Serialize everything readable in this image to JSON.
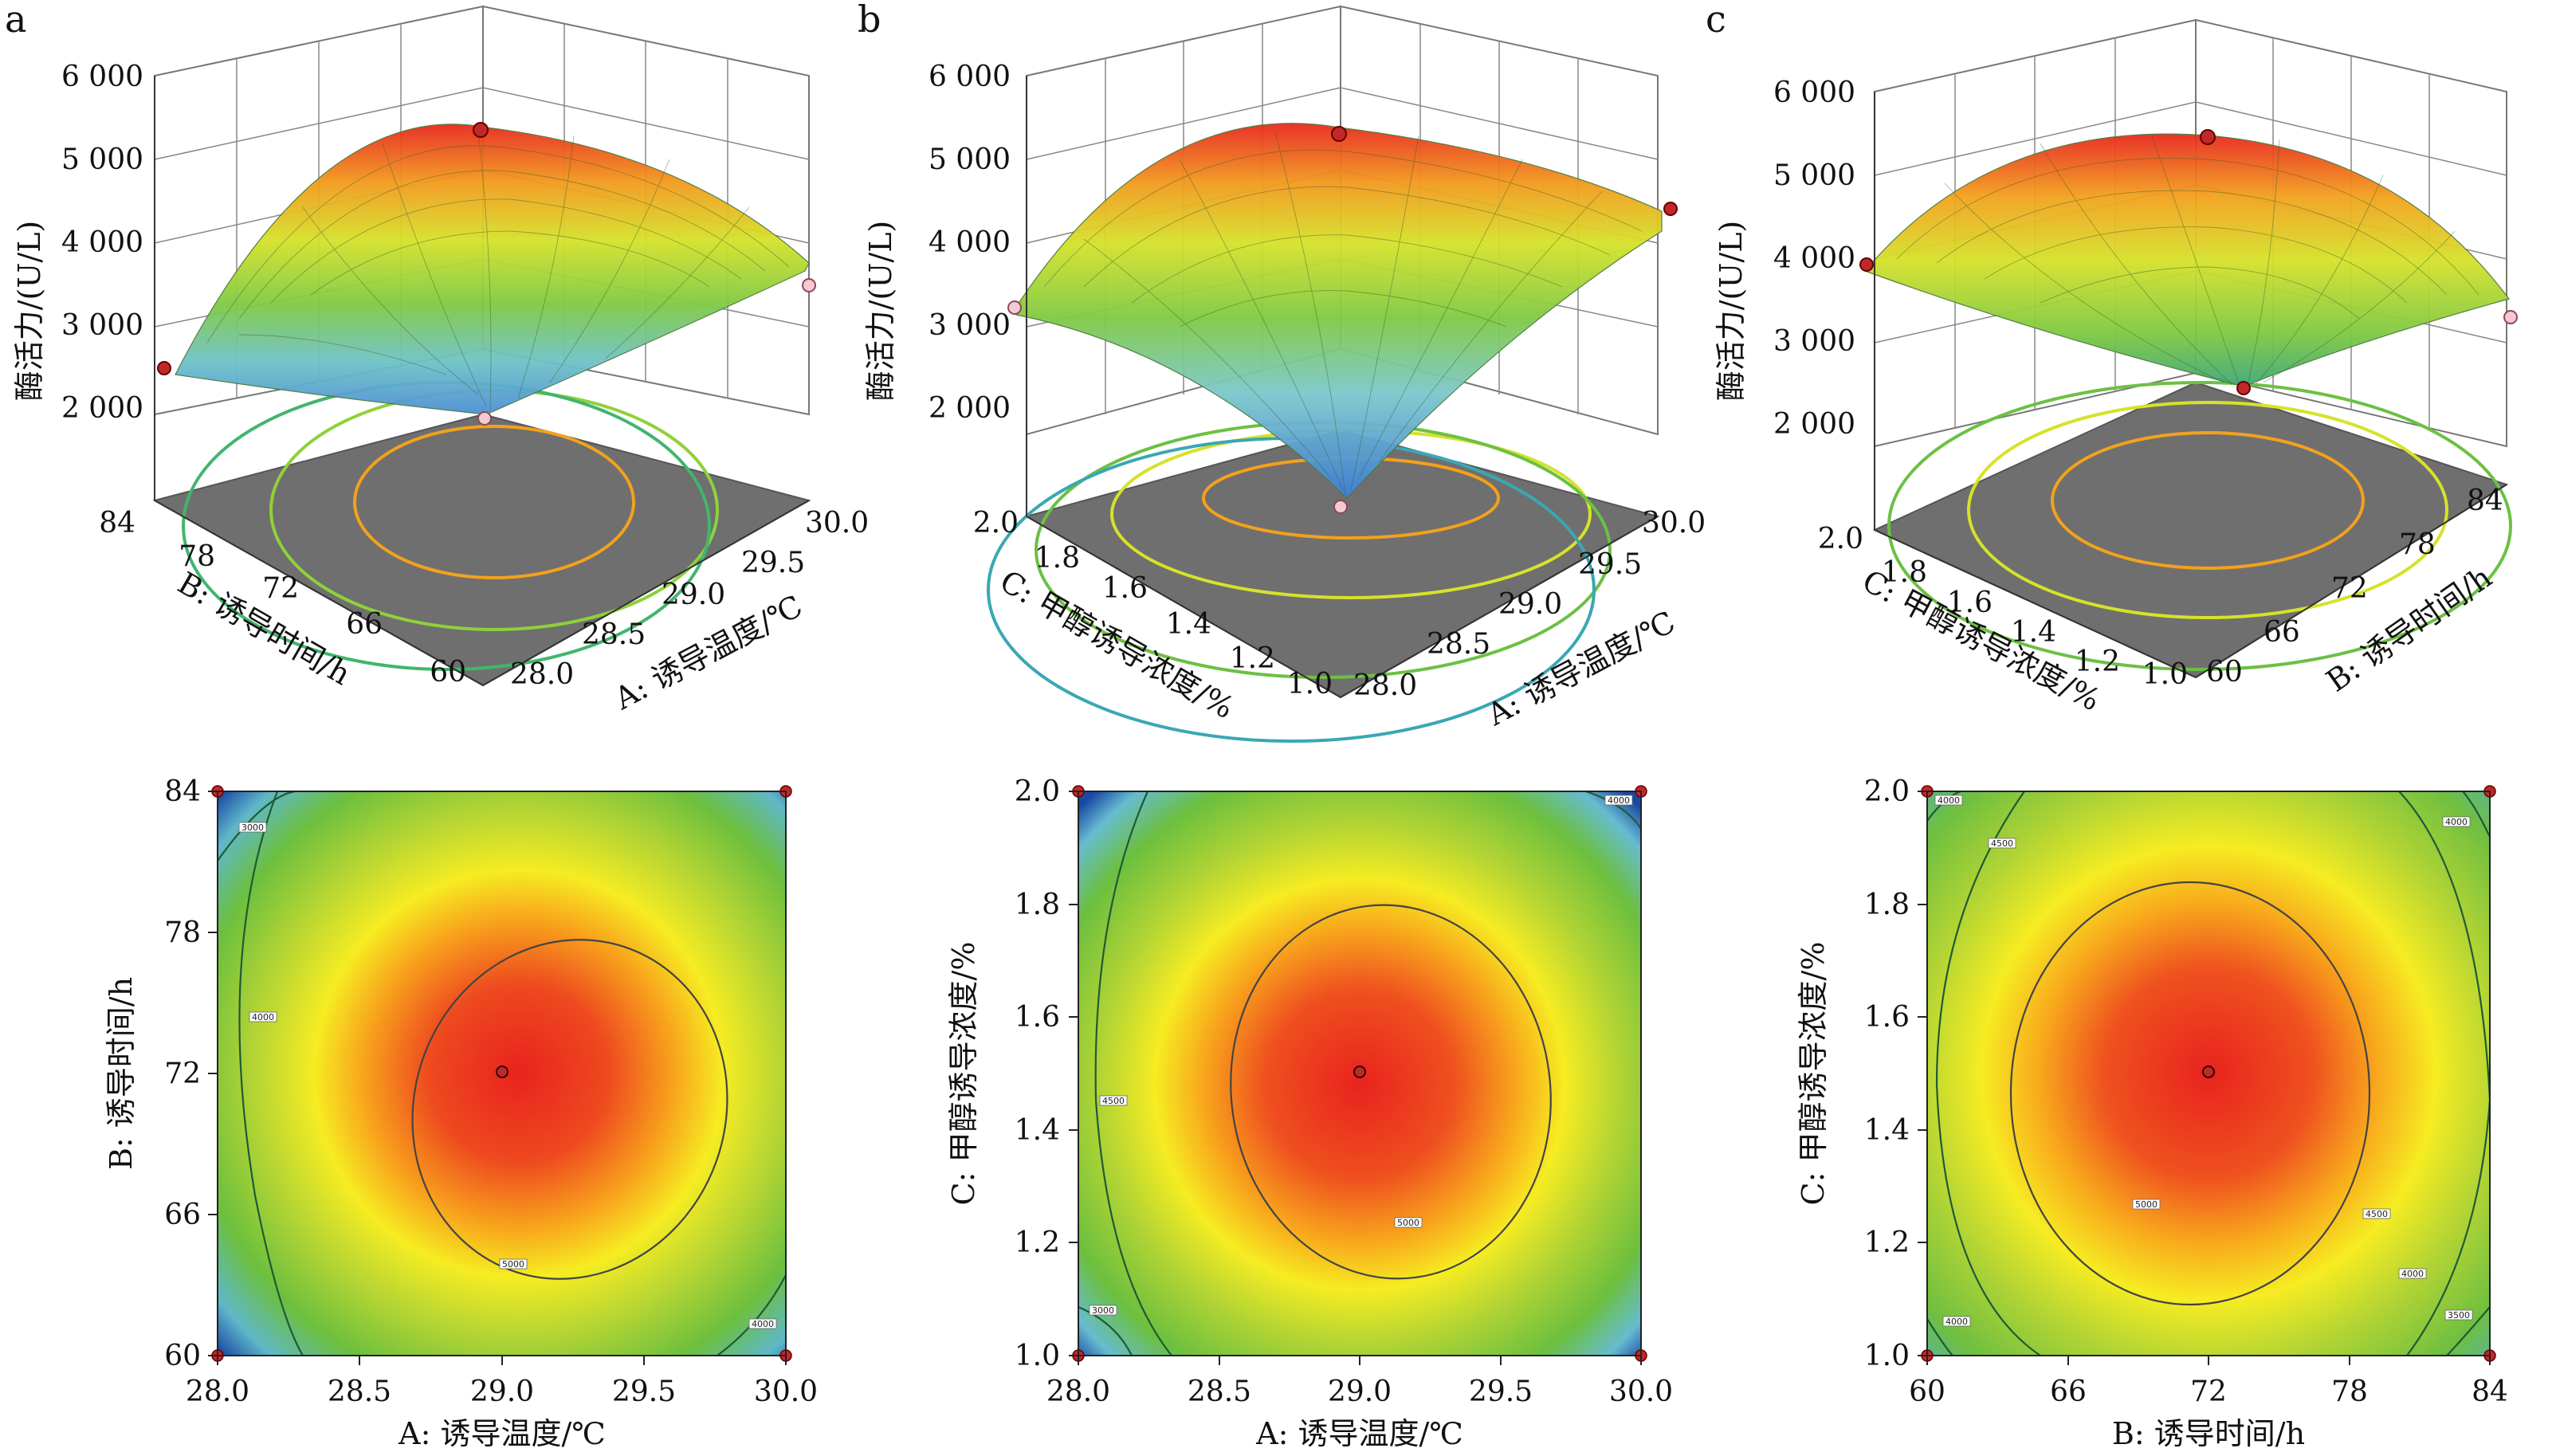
{
  "chart_data": [
    {
      "type": "surface",
      "panel_label": "a",
      "zlabel": "酶活力/(U/L)",
      "z_ticks": [
        "6 000",
        "5 000",
        "4 000",
        "3 000",
        "2 000"
      ],
      "xlabel": "A: 诱导温度/℃",
      "x_ticks": [
        "28.0",
        "28.5",
        "29.0",
        "29.5",
        "30.0"
      ],
      "ylabel": "B: 诱导时间/h",
      "y_ticks": [
        "60",
        "66",
        "72",
        "78",
        "84"
      ],
      "xlim": [
        28.0,
        30.0
      ],
      "ylim": [
        60,
        84
      ],
      "zlim": [
        2000,
        6000
      ],
      "optimum": {
        "x": 29.1,
        "y": 72,
        "z": 5400
      }
    },
    {
      "type": "surface",
      "panel_label": "b",
      "zlabel": "酶活力/(U/L)",
      "z_ticks": [
        "6 000",
        "5 000",
        "4 000",
        "3 000",
        "2 000"
      ],
      "xlabel": "A: 诱导温度/℃",
      "x_ticks": [
        "28.0",
        "28.5",
        "29.0",
        "29.5",
        "30.0"
      ],
      "ylabel": "C: 甲醇诱导浓度/%",
      "y_ticks": [
        "1.0",
        "1.2",
        "1.4",
        "1.6",
        "1.8",
        "2.0"
      ],
      "xlim": [
        28.0,
        30.0
      ],
      "ylim": [
        1.0,
        2.0
      ],
      "zlim": [
        2000,
        6000
      ],
      "optimum": {
        "x": 29.1,
        "y": 1.5,
        "z": 5400
      }
    },
    {
      "type": "surface",
      "panel_label": "c",
      "zlabel": "酶活力/(U/L)",
      "z_ticks": [
        "6 000",
        "5 000",
        "4 000",
        "3 000",
        "2 000"
      ],
      "xlabel": "B: 诱导时间/h",
      "x_ticks": [
        "60",
        "66",
        "72",
        "78",
        "84"
      ],
      "ylabel": "C: 甲醇诱导浓度/%",
      "y_ticks": [
        "1.0",
        "1.2",
        "1.4",
        "1.6",
        "1.8",
        "2.0"
      ],
      "xlim": [
        60,
        84
      ],
      "ylim": [
        1.0,
        2.0
      ],
      "zlim": [
        2000,
        6000
      ],
      "optimum": {
        "x": 72,
        "y": 1.5,
        "z": 5400
      }
    },
    {
      "type": "contour",
      "xlabel": "A: 诱导温度/℃",
      "x_ticks": [
        "28.0",
        "28.5",
        "29.0",
        "29.5",
        "30.0"
      ],
      "ylabel": "B: 诱导时间/h",
      "y_ticks": [
        "60",
        "66",
        "72",
        "78",
        "84"
      ],
      "xlim": [
        28.0,
        30.0
      ],
      "ylim": [
        60,
        84
      ],
      "contour_levels": [
        "3000",
        "4000",
        "5000",
        "4000"
      ],
      "center": {
        "x": 29.0,
        "y": 72
      }
    },
    {
      "type": "contour",
      "xlabel": "A: 诱导温度/℃",
      "x_ticks": [
        "28.0",
        "28.5",
        "29.0",
        "29.5",
        "30.0"
      ],
      "ylabel": "C: 甲醇诱导浓度/%",
      "y_ticks": [
        "1.0",
        "1.2",
        "1.4",
        "1.6",
        "1.8",
        "2.0"
      ],
      "xlim": [
        28.0,
        30.0
      ],
      "ylim": [
        1.0,
        2.0
      ],
      "contour_levels": [
        "3000",
        "4500",
        "5000",
        "4000"
      ],
      "center": {
        "x": 29.0,
        "y": 1.5
      }
    },
    {
      "type": "contour",
      "xlabel": "B: 诱导时间/h",
      "x_ticks": [
        "60",
        "66",
        "72",
        "78",
        "84"
      ],
      "ylabel": "C: 甲醇诱导浓度/%",
      "y_ticks": [
        "1.0",
        "1.2",
        "1.4",
        "1.6",
        "1.8",
        "2.0"
      ],
      "xlim": [
        60,
        84
      ],
      "ylim": [
        1.0,
        2.0
      ],
      "contour_levels": [
        "4000",
        "4500",
        "5000",
        "4500",
        "4000",
        "3500",
        "4000",
        "4000"
      ],
      "center": {
        "x": 72,
        "y": 1.5
      }
    }
  ]
}
